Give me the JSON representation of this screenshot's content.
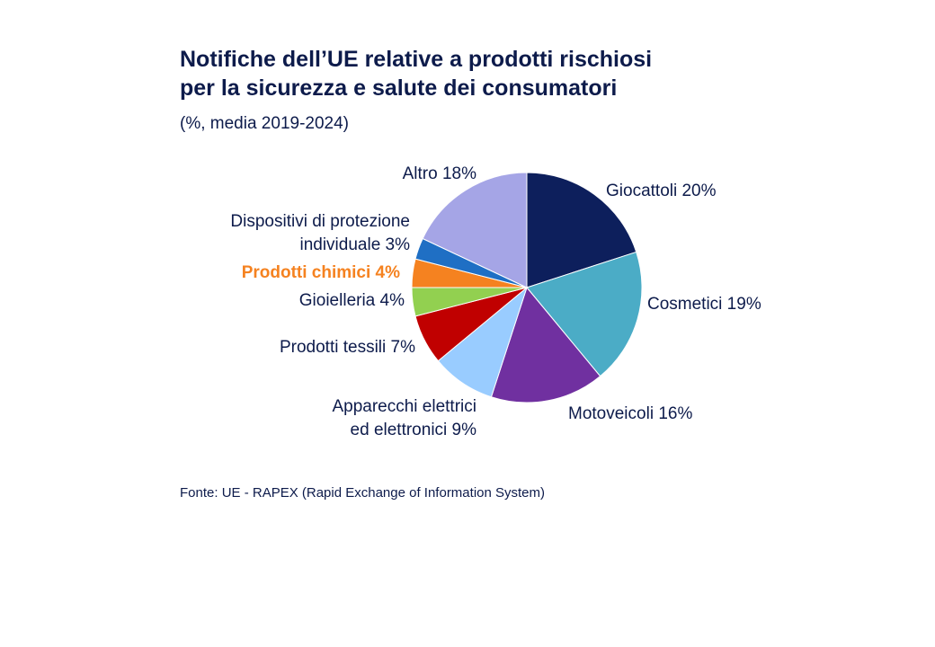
{
  "chart_data": {
    "type": "pie",
    "title_lines": [
      "Notifiche dell’UE relative a prodotti rischiosi",
      "per la sicurezza e salute dei consumatori"
    ],
    "subtitle": "(%, media 2019-2024)",
    "unit": "%",
    "slices": [
      {
        "name": "Giocattoli",
        "value": 20,
        "color": "#0d1f5c",
        "label_lines": [
          "Giocattoli 20%"
        ]
      },
      {
        "name": "Cosmetici",
        "value": 19,
        "color": "#4bacc6",
        "label_lines": [
          "Cosmetici 19%"
        ]
      },
      {
        "name": "Motoveicoli",
        "value": 16,
        "color": "#7030a0",
        "label_lines": [
          "Motoveicoli 16%"
        ]
      },
      {
        "name": "Apparecchi elettrici ed elettronici",
        "value": 9,
        "color": "#99ccff",
        "label_lines": [
          "Apparecchi elettrici",
          "ed elettronici 9%"
        ]
      },
      {
        "name": "Prodotti tessili",
        "value": 7,
        "color": "#c00000",
        "label_lines": [
          "Prodotti tessili 7%"
        ]
      },
      {
        "name": "Gioielleria",
        "value": 4,
        "color": "#92d050",
        "label_lines": [
          "Gioielleria 4%"
        ]
      },
      {
        "name": "Prodotti chimici",
        "value": 4,
        "color": "#f58220",
        "label_lines": [
          "Prodotti chimici 4%"
        ],
        "highlight": true,
        "label_color": "#f58220"
      },
      {
        "name": "Dispositivi di protezione individuale",
        "value": 3,
        "color": "#1f6fc4",
        "label_lines": [
          "Dispositivi di protezione",
          "individuale 3%"
        ]
      },
      {
        "name": "Altro",
        "value": 18,
        "color": "#a5a5e6",
        "label_lines": [
          "Altro 18%"
        ]
      }
    ],
    "source": "Fonte: UE - RAPEX (Rapid Exchange of Information System)"
  }
}
